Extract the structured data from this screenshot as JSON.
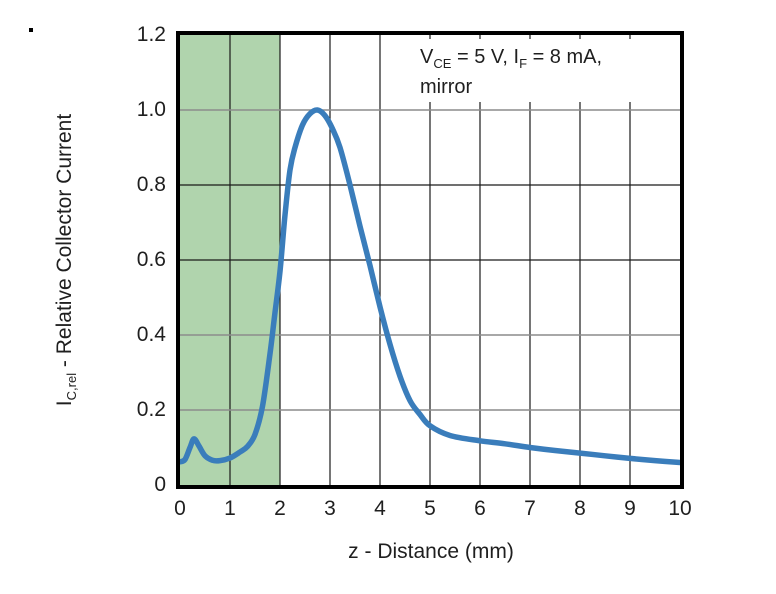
{
  "figure": {
    "corner_mark": "."
  },
  "chart_data": {
    "type": "line",
    "title": "",
    "xlabel": "z - Distance (mm)",
    "ylabel": "IC,rel - Relative Collector Current",
    "ylabel_parts": {
      "prefix": "I",
      "sub": "C,rel",
      "rest": " - Relative Collector Current"
    },
    "xlim": [
      0,
      10
    ],
    "ylim": [
      0,
      1.2
    ],
    "x_tick_labels": [
      "0",
      "1",
      "2",
      "3",
      "4",
      "5",
      "6",
      "7",
      "8",
      "9",
      "10"
    ],
    "x_tick_values": [
      0,
      1,
      2,
      3,
      4,
      5,
      6,
      7,
      8,
      9,
      10
    ],
    "y_tick_labels": [
      "1.2",
      "1.0",
      "0.8",
      "0.6",
      "0.4",
      "0.2",
      "0"
    ],
    "y_tick_values": [
      1.2,
      1.0,
      0.8,
      0.6,
      0.4,
      0.2,
      0
    ],
    "grid": true,
    "legend_position": "none",
    "annotation": {
      "v": "V",
      "v_sub": "CE",
      "mid": " = 5 V, I",
      "f_sub": "F",
      "tail": " = 8 mA,",
      "line2": "mirror"
    },
    "shaded_region": {
      "x_start": 0,
      "x_end": 2,
      "color": "#b0d4ad"
    },
    "colors": {
      "curve": "#3a7dbb",
      "grid_dark": "#1a1a1a",
      "grid_gray": "#8c8c8c",
      "frame": "#000000",
      "background": "#ffffff"
    },
    "h_gridlines": [
      {
        "value": 1.0,
        "shade": "gray"
      },
      {
        "value": 0.8,
        "shade": "dark"
      },
      {
        "value": 0.6,
        "shade": "dark"
      },
      {
        "value": 0.4,
        "shade": "gray"
      },
      {
        "value": 0.2,
        "shade": "gray"
      }
    ],
    "v_gridlines": [
      1,
      2,
      3,
      4,
      5,
      6,
      7,
      8,
      9
    ],
    "series": [
      {
        "name": "VCE = 5 V, IF = 8 mA, mirror",
        "color": "#3a7dbb",
        "points": [
          [
            0,
            0.062
          ],
          [
            0.1,
            0.068
          ],
          [
            0.2,
            0.1
          ],
          [
            0.28,
            0.123
          ],
          [
            0.38,
            0.104
          ],
          [
            0.5,
            0.078
          ],
          [
            0.65,
            0.066
          ],
          [
            0.8,
            0.065
          ],
          [
            1,
            0.072
          ],
          [
            1.2,
            0.088
          ],
          [
            1.35,
            0.103
          ],
          [
            1.5,
            0.135
          ],
          [
            1.65,
            0.21
          ],
          [
            1.8,
            0.35
          ],
          [
            1.9,
            0.46
          ],
          [
            2,
            0.57
          ],
          [
            2.1,
            0.72
          ],
          [
            2.2,
            0.84
          ],
          [
            2.3,
            0.9
          ],
          [
            2.45,
            0.96
          ],
          [
            2.6,
            0.99
          ],
          [
            2.75,
            1.0
          ],
          [
            2.9,
            0.985
          ],
          [
            3.05,
            0.95
          ],
          [
            3.2,
            0.9
          ],
          [
            3.4,
            0.8
          ],
          [
            3.6,
            0.69
          ],
          [
            3.8,
            0.585
          ],
          [
            4,
            0.475
          ],
          [
            4.2,
            0.375
          ],
          [
            4.4,
            0.29
          ],
          [
            4.6,
            0.225
          ],
          [
            4.8,
            0.188
          ],
          [
            5,
            0.158
          ],
          [
            5.4,
            0.132
          ],
          [
            6,
            0.118
          ],
          [
            6.5,
            0.11
          ],
          [
            7,
            0.1
          ],
          [
            7.5,
            0.092
          ],
          [
            8,
            0.085
          ],
          [
            8.5,
            0.078
          ],
          [
            9,
            0.071
          ],
          [
            9.5,
            0.065
          ],
          [
            10,
            0.06
          ]
        ]
      }
    ]
  }
}
